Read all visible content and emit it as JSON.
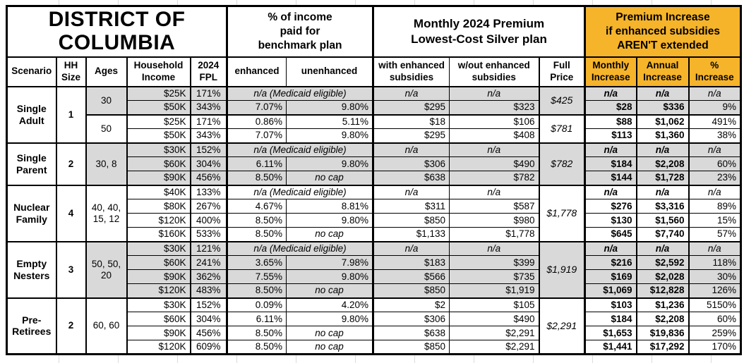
{
  "header": {
    "title": "DISTRICT OF\nCOLUMBIA",
    "income_pct_group": "% of income\npaid for\nbenchmark plan",
    "premium_group": "Monthly 2024 Premium\nLowest-Cost Silver plan",
    "increase_group": "Premium Increase\nif enhanced subsidies\nAREN'T extended"
  },
  "columns": [
    "Scenario",
    "HH\nSize",
    "Ages",
    "Household\nIncome",
    "2024\nFPL",
    "enhanced",
    "unenhanced",
    "with enhanced\nsubsidies",
    "w/out enhanced\nsubsidies",
    "Full\nPrice",
    "Monthly\nIncrease",
    "Annual\nIncrease",
    "%\nIncrease"
  ],
  "na_labels": {
    "medicaid": "n/a (Medicaid eligible)",
    "na": "n/a"
  },
  "colors": {
    "accent_orange": "#F6B42B",
    "row_shade": "#D9D9D9",
    "border": "#000000",
    "faint_grid": "#DCDCDC"
  },
  "sections": [
    {
      "scenario": "Single\nAdult",
      "hh_size": "1",
      "age_groups": [
        {
          "ages": "30",
          "shaded": true,
          "full_price": "$425",
          "rows": [
            {
              "income": "$25K",
              "fpl": "171%",
              "na": true
            },
            {
              "income": "$50K",
              "fpl": "343%",
              "enh": "7.07%",
              "unenh": "9.80%",
              "with": "$295",
              "wout": "$323",
              "mo": "$28",
              "an": "$336",
              "pct": "9%"
            }
          ]
        },
        {
          "ages": "50",
          "shaded": false,
          "full_price": "$781",
          "rows": [
            {
              "income": "$25K",
              "fpl": "171%",
              "enh": "0.86%",
              "unenh": "5.11%",
              "with": "$18",
              "wout": "$106",
              "mo": "$88",
              "an": "$1,062",
              "pct": "491%"
            },
            {
              "income": "$50K",
              "fpl": "343%",
              "enh": "7.07%",
              "unenh": "9.80%",
              "with": "$295",
              "wout": "$408",
              "mo": "$113",
              "an": "$1,360",
              "pct": "38%"
            }
          ]
        }
      ]
    },
    {
      "scenario": "Single\nParent",
      "hh_size": "2",
      "age_groups": [
        {
          "ages": "30, 8",
          "shaded": true,
          "full_price": "$782",
          "rows": [
            {
              "income": "$30K",
              "fpl": "152%",
              "na": true
            },
            {
              "income": "$60K",
              "fpl": "304%",
              "enh": "6.11%",
              "unenh": "9.80%",
              "with": "$306",
              "wout": "$490",
              "mo": "$184",
              "an": "$2,208",
              "pct": "60%"
            },
            {
              "income": "$90K",
              "fpl": "456%",
              "enh": "8.50%",
              "unenh": "no cap",
              "with": "$638",
              "wout": "$782",
              "mo": "$144",
              "an": "$1,728",
              "pct": "23%"
            }
          ]
        }
      ]
    },
    {
      "scenario": "Nuclear\nFamily",
      "hh_size": "4",
      "age_groups": [
        {
          "ages": "40, 40,\n15, 12",
          "shaded": false,
          "full_price": "$1,778",
          "rows": [
            {
              "income": "$40K",
              "fpl": "133%",
              "na": true
            },
            {
              "income": "$80K",
              "fpl": "267%",
              "enh": "4.67%",
              "unenh": "8.81%",
              "with": "$311",
              "wout": "$587",
              "mo": "$276",
              "an": "$3,316",
              "pct": "89%"
            },
            {
              "income": "$120K",
              "fpl": "400%",
              "enh": "8.50%",
              "unenh": "9.80%",
              "with": "$850",
              "wout": "$980",
              "mo": "$130",
              "an": "$1,560",
              "pct": "15%"
            },
            {
              "income": "$160K",
              "fpl": "533%",
              "enh": "8.50%",
              "unenh": "no cap",
              "with": "$1,133",
              "wout": "$1,778",
              "mo": "$645",
              "an": "$7,740",
              "pct": "57%"
            }
          ]
        }
      ]
    },
    {
      "scenario": "Empty\nNesters",
      "hh_size": "3",
      "age_groups": [
        {
          "ages": "50, 50,\n20",
          "shaded": true,
          "full_price": "$1,919",
          "rows": [
            {
              "income": "$30K",
              "fpl": "121%",
              "na": true
            },
            {
              "income": "$60K",
              "fpl": "241%",
              "enh": "3.65%",
              "unenh": "7.98%",
              "with": "$183",
              "wout": "$399",
              "mo": "$216",
              "an": "$2,592",
              "pct": "118%"
            },
            {
              "income": "$90K",
              "fpl": "362%",
              "enh": "7.55%",
              "unenh": "9.80%",
              "with": "$566",
              "wout": "$735",
              "mo": "$169",
              "an": "$2,028",
              "pct": "30%"
            },
            {
              "income": "$120K",
              "fpl": "483%",
              "enh": "8.50%",
              "unenh": "no cap",
              "with": "$850",
              "wout": "$1,919",
              "mo": "$1,069",
              "an": "$12,828",
              "pct": "126%"
            }
          ]
        }
      ]
    },
    {
      "scenario": "Pre-\nRetirees",
      "hh_size": "2",
      "age_groups": [
        {
          "ages": "60, 60",
          "shaded": false,
          "full_price": "$2,291",
          "rows": [
            {
              "income": "$30K",
              "fpl": "152%",
              "enh": "0.09%",
              "unenh": "4.20%",
              "with": "$2",
              "wout": "$105",
              "mo": "$103",
              "an": "$1,236",
              "pct": "5150%"
            },
            {
              "income": "$60K",
              "fpl": "304%",
              "enh": "6.11%",
              "unenh": "9.80%",
              "with": "$306",
              "wout": "$490",
              "mo": "$184",
              "an": "$2,208",
              "pct": "60%"
            },
            {
              "income": "$90K",
              "fpl": "456%",
              "enh": "8.50%",
              "unenh": "no cap",
              "with": "$638",
              "wout": "$2,291",
              "mo": "$1,653",
              "an": "$19,836",
              "pct": "259%"
            },
            {
              "income": "$120K",
              "fpl": "609%",
              "enh": "8.50%",
              "unenh": "no cap",
              "with": "$850",
              "wout": "$2,291",
              "mo": "$1,441",
              "an": "$17,292",
              "pct": "170%"
            }
          ]
        }
      ]
    }
  ]
}
